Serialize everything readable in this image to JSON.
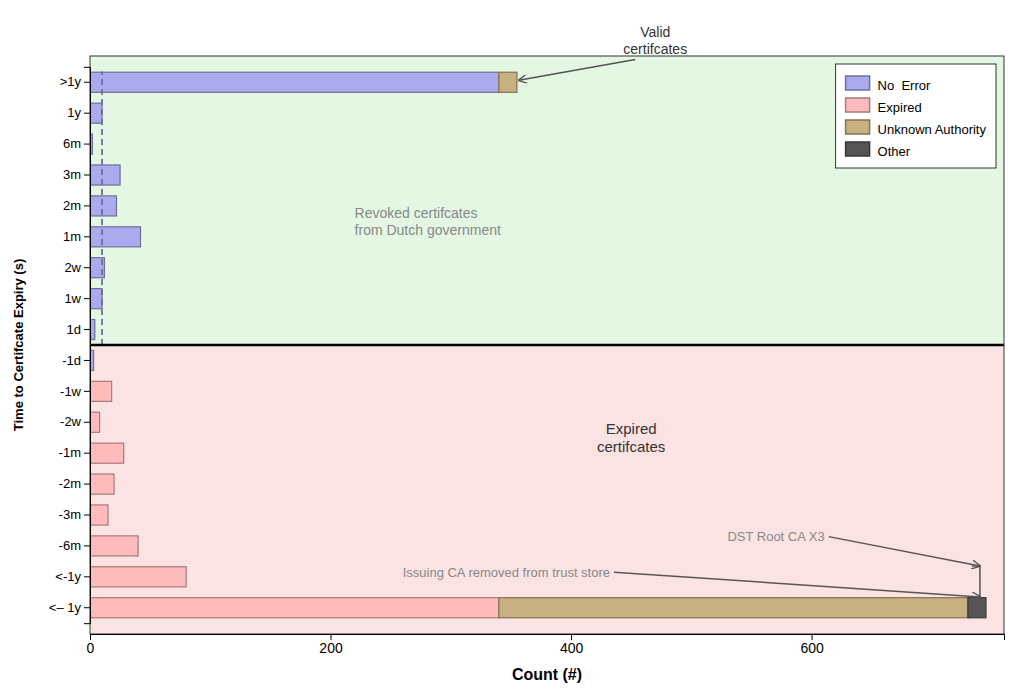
{
  "chart_data": {
    "type": "bar",
    "orientation": "horizontal",
    "stacked": true,
    "xlabel": "Count (#)",
    "ylabel": "Time to Certif​cate Expiry (s)",
    "categories": [
      ">1y",
      "1y",
      "6m",
      "3m",
      "2m",
      "1m",
      "2w",
      "1w",
      "1d",
      "-1d",
      "-1w",
      "-2w",
      "-1m",
      "-2m",
      "-3m",
      "-6m",
      "<-1y",
      "<– 1y"
    ],
    "series": [
      {
        "name": "No  Error",
        "color": "#aaaaee",
        "values": [
          340,
          10,
          2,
          25,
          22,
          42,
          12,
          10,
          4,
          3,
          null,
          null,
          null,
          null,
          null,
          null,
          null,
          null
        ]
      },
      {
        "name": "Expired",
        "color": "#ffbbbb",
        "values": [
          null,
          null,
          null,
          null,
          null,
          null,
          null,
          null,
          null,
          null,
          18,
          8,
          28,
          20,
          15,
          40,
          80,
          340
        ]
      },
      {
        "name": "Unknown Authority",
        "color": "#c8b080",
        "values": [
          15,
          null,
          null,
          null,
          null,
          null,
          null,
          null,
          null,
          null,
          null,
          null,
          null,
          null,
          null,
          null,
          null,
          390
        ]
      },
      {
        "name": "Other",
        "color": "#555555",
        "values": [
          null,
          null,
          null,
          null,
          null,
          null,
          null,
          null,
          null,
          null,
          null,
          null,
          null,
          null,
          null,
          null,
          null,
          15
        ]
      }
    ],
    "xlim": [
      0,
      760
    ],
    "xticks": [
      0,
      200,
      400,
      600
    ],
    "grid": false,
    "legend": "upper-right",
    "annotations": [
      "Valid\ncertif​cates",
      "Revoked certif​cates\nfrom Dutch government",
      "Expired\ncertif​cates",
      "DST Root CA X3",
      "Issuing CA removed from trust store"
    ]
  }
}
